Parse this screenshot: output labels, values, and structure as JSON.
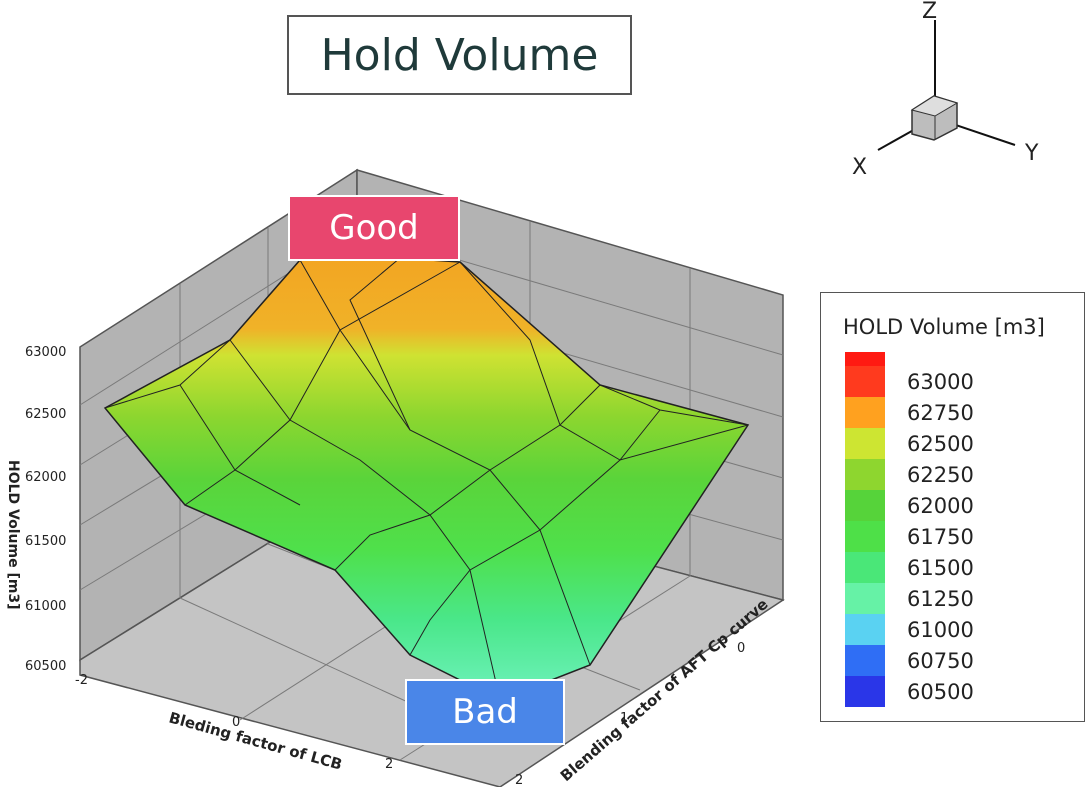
{
  "title": "Hold Volume",
  "callouts": {
    "good": "Good",
    "bad": "Bad"
  },
  "orientation_axes": {
    "z": "Z",
    "x": "X",
    "y": "Y"
  },
  "chart_data": {
    "type": "surface",
    "zlabel": "HOLD Volume [m3]",
    "xlabel": "Bleding factor of LCB",
    "ylabel": "Blending factor of AFT Cp curve",
    "zlim": [
      60500,
      63000
    ],
    "z_ticks": [
      "63000",
      "62500",
      "62000",
      "61500",
      "61000",
      "60500"
    ],
    "x_ticks": [
      "-2",
      "0",
      "2"
    ],
    "y_ticks": [
      "0",
      "1",
      "2"
    ],
    "legend": {
      "title": "HOLD Volume [m3]",
      "levels": [
        {
          "value": "63000",
          "color": "#ff3a1e"
        },
        {
          "value": "62750",
          "color": "#ffa11f"
        },
        {
          "value": "62500",
          "color": "#cde532"
        },
        {
          "value": "62250",
          "color": "#8ed62f"
        },
        {
          "value": "62000",
          "color": "#56d33a"
        },
        {
          "value": "61750",
          "color": "#4ee048"
        },
        {
          "value": "61500",
          "color": "#4ae778"
        },
        {
          "value": "61250",
          "color": "#66f2a6"
        },
        {
          "value": "61000",
          "color": "#5ad2f2"
        },
        {
          "value": "60750",
          "color": "#2f6ef5"
        },
        {
          "value": "60500",
          "color": "#2a36e8"
        }
      ],
      "top_color": "#ff1a12"
    }
  }
}
